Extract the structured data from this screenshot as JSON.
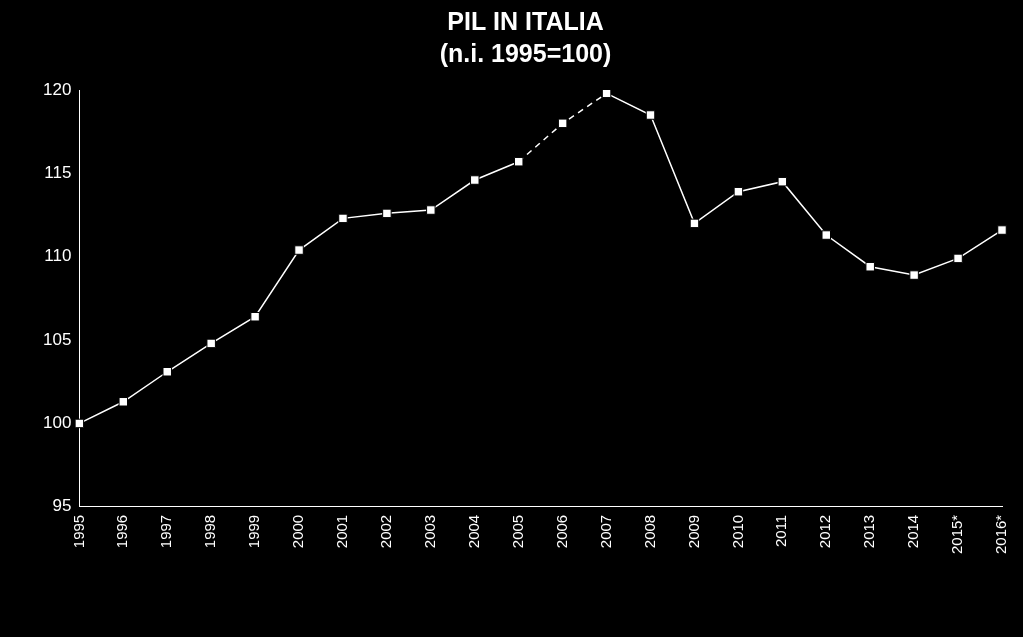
{
  "chart_data": {
    "type": "line",
    "title": "PIL IN ITALIA",
    "subtitle": "(n.i. 1995=100)",
    "categories": [
      "1995",
      "1996",
      "1997",
      "1998",
      "1999",
      "2000",
      "2001",
      "2002",
      "2003",
      "2004",
      "2005",
      "2006",
      "2007",
      "2008",
      "2009",
      "2010",
      "2011",
      "2012",
      "2013",
      "2014",
      "2015*",
      "2016*"
    ],
    "series": [
      {
        "color": "#ffffff",
        "marker": "square",
        "line_style": "solid",
        "values": [
          100,
          101.3,
          103.1,
          104.8,
          106.4,
          110.4,
          112.3,
          112.6,
          112.8,
          114.6,
          115.7,
          null,
          119.8,
          118.5,
          112.0,
          113.9,
          114.5,
          111.3,
          109.4,
          108.9,
          109.9,
          111.6
        ]
      },
      {
        "color": "#ffffff",
        "marker": "square",
        "line_style": "dashed",
        "values": [
          null,
          null,
          null,
          null,
          null,
          null,
          null,
          null,
          null,
          null,
          115.7,
          118.0,
          119.8,
          null,
          null,
          null,
          null,
          null,
          null,
          null,
          null,
          null
        ]
      }
    ],
    "ylim": [
      95,
      120
    ],
    "yticks": [
      95,
      100,
      105,
      110,
      115,
      120
    ],
    "grid": false
  }
}
